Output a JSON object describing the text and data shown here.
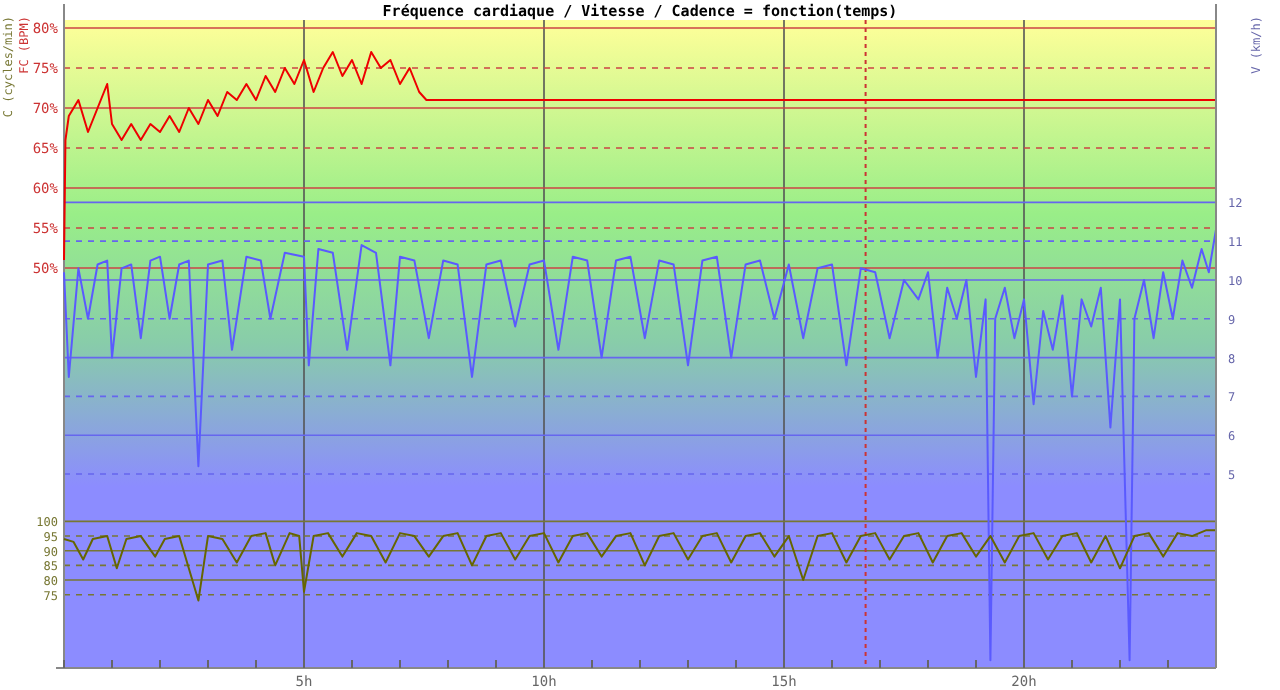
{
  "chart_data": {
    "type": "line",
    "title": "Fréquence cardiaque / Vitesse / Cadence = fonction(temps)",
    "ylabel": "FC (BPM)",
    "y2label": "V (km/h)",
    "y3label": "C (cycles/min)",
    "grid": true,
    "marker": "none",
    "line_style": "solid",
    "xlim": [
      0,
      24
    ],
    "xticks": [
      {
        "value": 0,
        "label": null
      },
      {
        "value": 1,
        "label": null
      },
      {
        "value": 2,
        "label": null
      },
      {
        "value": 3,
        "label": null
      },
      {
        "value": 4,
        "label": null
      },
      {
        "value": 5,
        "label": "5h"
      },
      {
        "value": 6,
        "label": null
      },
      {
        "value": 7,
        "label": null
      },
      {
        "value": 8,
        "label": null
      },
      {
        "value": 9,
        "label": null
      },
      {
        "value": 10,
        "label": "10h"
      },
      {
        "value": 11,
        "label": null
      },
      {
        "value": 12,
        "label": null
      },
      {
        "value": 13,
        "label": null
      },
      {
        "value": 14,
        "label": null
      },
      {
        "value": 15,
        "label": "15h"
      },
      {
        "value": 16,
        "label": null
      },
      {
        "value": 17,
        "label": null
      },
      {
        "value": 18,
        "label": null
      },
      {
        "value": 19,
        "label": null
      },
      {
        "value": 20,
        "label": "20h"
      },
      {
        "value": 21,
        "label": null
      },
      {
        "value": 22,
        "label": null
      },
      {
        "value": 23,
        "label": null
      }
    ],
    "ylim": [
      0,
      81
    ],
    "yticks": [
      {
        "value": 50,
        "label": "50%"
      },
      {
        "value": 55,
        "label": "55%"
      },
      {
        "value": 60,
        "label": "60%"
      },
      {
        "value": 65,
        "label": "65%"
      },
      {
        "value": 70,
        "label": "70%"
      },
      {
        "value": 75,
        "label": "75%"
      },
      {
        "value": 80,
        "label": "80%"
      }
    ],
    "y2lim": [
      0,
      16.7
    ],
    "y2ticks": [
      5,
      6,
      7,
      8,
      9,
      10,
      11,
      12
    ],
    "y3lim": [
      50,
      271
    ],
    "y3ticks": [
      75,
      80,
      85,
      90,
      95,
      100
    ],
    "ref_lines": [
      {
        "axis": "x",
        "value": 16.7,
        "color": "#cc3333",
        "line_style": "dotted"
      }
    ],
    "series": [
      {
        "color": "#ee0000",
        "x": [
          0,
          0.03,
          0.1,
          0.3,
          0.5,
          0.7,
          0.9,
          1.0,
          1.2,
          1.4,
          1.6,
          1.8,
          2.0,
          2.2,
          2.4,
          2.6,
          2.8,
          3.0,
          3.2,
          3.4,
          3.6,
          3.8,
          4.0,
          4.2,
          4.4,
          4.6,
          4.8,
          5.0,
          5.2,
          5.4,
          5.6,
          5.8,
          6.0,
          6.2,
          6.4,
          6.6,
          6.8,
          7.0,
          7.2,
          7.4,
          7.55,
          24
        ],
        "values": [
          51,
          66,
          69,
          71,
          67,
          70,
          73,
          68,
          66,
          68,
          66,
          68,
          67,
          69,
          67,
          70,
          68,
          71,
          69,
          72,
          71,
          73,
          71,
          74,
          72,
          75,
          73,
          76,
          72,
          75,
          77,
          74,
          76,
          73,
          77,
          75,
          76,
          73,
          75,
          72,
          71,
          71
        ]
      },
      {
        "color": "#5a5aff",
        "axis": "y2",
        "x": [
          0,
          0.1,
          0.3,
          0.5,
          0.7,
          0.9,
          1.0,
          1.2,
          1.4,
          1.6,
          1.8,
          2.0,
          2.2,
          2.4,
          2.6,
          2.8,
          3.0,
          3.3,
          3.5,
          3.8,
          4.1,
          4.3,
          4.6,
          5.0,
          5.1,
          5.3,
          5.6,
          5.9,
          6.2,
          6.5,
          6.8,
          7.0,
          7.3,
          7.6,
          7.9,
          8.2,
          8.5,
          8.8,
          9.1,
          9.4,
          9.7,
          10.0,
          10.3,
          10.6,
          10.9,
          11.2,
          11.5,
          11.8,
          12.1,
          12.4,
          12.7,
          13.0,
          13.3,
          13.6,
          13.9,
          14.2,
          14.5,
          14.8,
          15.1,
          15.4,
          15.7,
          16.0,
          16.3,
          16.6,
          16.9,
          17.2,
          17.5,
          17.8,
          18.0,
          18.2,
          18.4,
          18.6,
          18.8,
          19.0,
          19.2,
          19.3,
          19.4,
          19.6,
          19.8,
          20.0,
          20.2,
          20.4,
          20.6,
          20.8,
          21.0,
          21.2,
          21.4,
          21.6,
          21.8,
          22.0,
          22.2,
          22.3,
          22.5,
          22.7,
          22.9,
          23.1,
          23.3,
          23.5,
          23.7,
          23.85,
          24.0
        ],
        "values": [
          10.2,
          7.5,
          10.3,
          9.0,
          10.4,
          10.5,
          8.0,
          10.3,
          10.4,
          8.5,
          10.5,
          10.6,
          9.0,
          10.4,
          10.5,
          5.2,
          10.4,
          10.5,
          8.2,
          10.6,
          10.5,
          9.0,
          10.7,
          10.6,
          7.8,
          10.8,
          10.7,
          8.2,
          10.9,
          10.7,
          7.8,
          10.6,
          10.5,
          8.5,
          10.5,
          10.4,
          7.5,
          10.4,
          10.5,
          8.8,
          10.4,
          10.5,
          8.2,
          10.6,
          10.5,
          8.0,
          10.5,
          10.6,
          8.5,
          10.5,
          10.4,
          7.8,
          10.5,
          10.6,
          8.0,
          10.4,
          10.5,
          9.0,
          10.4,
          8.5,
          10.3,
          10.4,
          7.8,
          10.3,
          10.2,
          8.5,
          10.0,
          9.5,
          10.2,
          8.0,
          9.8,
          9.0,
          10.0,
          7.5,
          9.5,
          0.2,
          9.0,
          9.8,
          8.5,
          9.5,
          6.8,
          9.2,
          8.2,
          9.6,
          7.0,
          9.5,
          8.8,
          9.8,
          6.2,
          9.5,
          0.2,
          9.0,
          10.0,
          8.5,
          10.2,
          9.0,
          10.5,
          9.8,
          10.8,
          10.2,
          11.3
        ]
      },
      {
        "color": "#666600",
        "axis": "y3",
        "x": [
          0,
          0.2,
          0.4,
          0.6,
          0.9,
          1.1,
          1.3,
          1.6,
          1.9,
          2.1,
          2.4,
          2.8,
          3.0,
          3.3,
          3.6,
          3.9,
          4.2,
          4.4,
          4.7,
          4.9,
          5.0,
          5.2,
          5.5,
          5.8,
          6.1,
          6.4,
          6.7,
          7.0,
          7.3,
          7.6,
          7.9,
          8.2,
          8.5,
          8.8,
          9.1,
          9.4,
          9.7,
          10.0,
          10.3,
          10.6,
          10.9,
          11.2,
          11.5,
          11.8,
          12.1,
          12.4,
          12.7,
          13.0,
          13.3,
          13.6,
          13.9,
          14.2,
          14.5,
          14.8,
          15.1,
          15.4,
          15.7,
          16.0,
          16.3,
          16.6,
          16.9,
          17.2,
          17.5,
          17.8,
          18.1,
          18.4,
          18.7,
          19.0,
          19.3,
          19.6,
          19.9,
          20.2,
          20.5,
          20.8,
          21.1,
          21.4,
          21.7,
          22.0,
          22.3,
          22.6,
          22.9,
          23.2,
          23.5,
          23.8,
          24.0
        ],
        "values": [
          94,
          93,
          87,
          94,
          95,
          84,
          94,
          95,
          88,
          94,
          95,
          73,
          95,
          94,
          86,
          95,
          96,
          85,
          96,
          95,
          76,
          95,
          96,
          88,
          96,
          95,
          86,
          96,
          95,
          88,
          95,
          96,
          85,
          95,
          96,
          87,
          95,
          96,
          86,
          95,
          96,
          88,
          95,
          96,
          85,
          95,
          96,
          87,
          95,
          96,
          86,
          95,
          96,
          88,
          95,
          80,
          95,
          96,
          86,
          95,
          96,
          87,
          95,
          96,
          86,
          95,
          96,
          88,
          95,
          86,
          95,
          96,
          87,
          95,
          96,
          86,
          95,
          84,
          95,
          96,
          88,
          96,
          95,
          97,
          97
        ]
      }
    ]
  }
}
